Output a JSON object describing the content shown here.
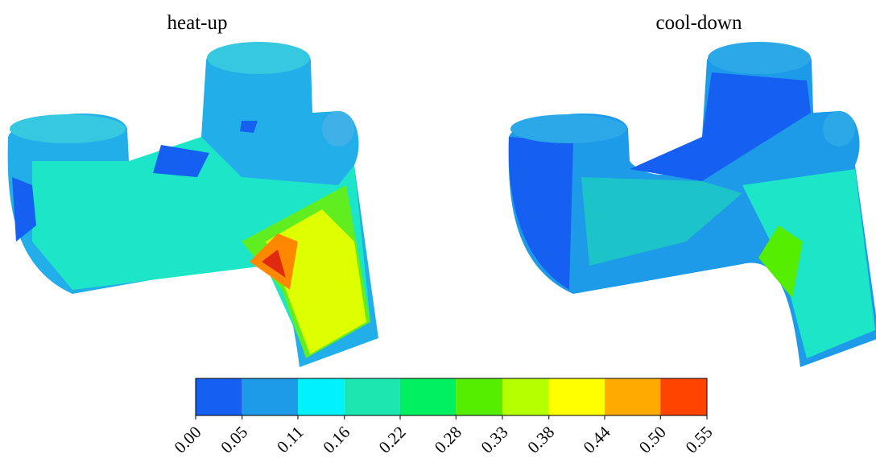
{
  "panels": [
    {
      "title": "heat-up"
    },
    {
      "title": "cool-down"
    }
  ],
  "colorbar": {
    "lim": [
      0,
      0.55
    ],
    "ticks": [
      {
        "value": 0,
        "label": "0.00"
      },
      {
        "value": 0.05,
        "label": "0.05"
      },
      {
        "value": 0.11,
        "label": "0.11"
      },
      {
        "value": 0.16,
        "label": "0.16"
      },
      {
        "value": 0.22,
        "label": "0.22"
      },
      {
        "value": 0.28,
        "label": "0.28"
      },
      {
        "value": 0.33,
        "label": "0.33"
      },
      {
        "value": 0.38,
        "label": "0.38"
      },
      {
        "value": 0.44,
        "label": "0.44"
      },
      {
        "value": 0.5,
        "label": "0.50"
      },
      {
        "value": 0.55,
        "label": "0.55"
      }
    ],
    "colors": [
      "#1560f0",
      "#1e9be8",
      "#00f2ff",
      "#1de6b0",
      "#00f060",
      "#55ee00",
      "#b4ff00",
      "#ffff00",
      "#ffaa00",
      "#ff4400"
    ]
  }
}
